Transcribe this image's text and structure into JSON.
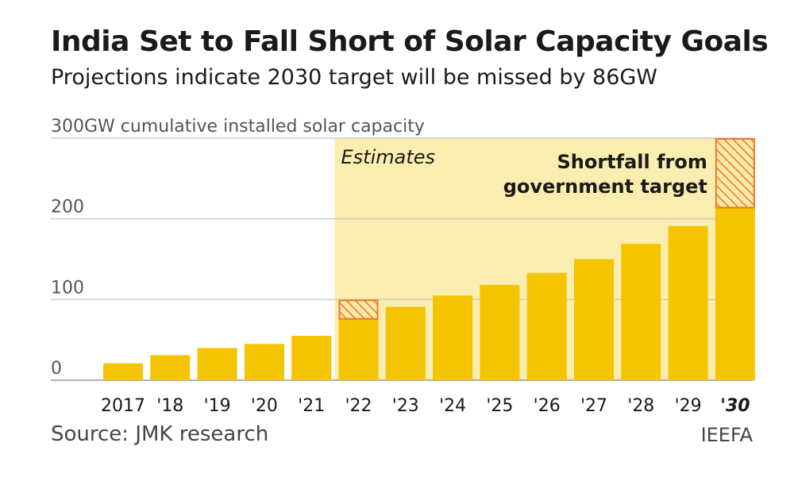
{
  "header": {
    "title": "India Set to Fall Short of Solar Capacity Goals",
    "subtitle": "Projections indicate 2030 target will be missed by 86GW"
  },
  "footer": {
    "source": "Source: JMK research",
    "credit": "IEEFA"
  },
  "colors": {
    "bar": "#f5c400",
    "estimate_band": "#faedb0",
    "shortfall_fill": "#fbe9a6",
    "shortfall_hatch": "#e87a2a",
    "grid": "#cccccc"
  },
  "chart_data": {
    "type": "bar",
    "ylabel": "cumulative installed solar capacity",
    "y_ticks": [
      "0",
      "100",
      "200",
      "300GW"
    ],
    "ylim": [
      0,
      300
    ],
    "categories": [
      "2017",
      "'18",
      "'19",
      "'20",
      "'21",
      "'22",
      "'23",
      "'24",
      "'25",
      "'26",
      "'27",
      "'28",
      "'29",
      "'30"
    ],
    "series": [
      {
        "values": [
          21,
          31,
          40,
          45,
          55,
          76,
          91,
          105,
          118,
          133,
          150,
          169,
          191,
          214
        ]
      }
    ],
    "shortfall_to_target": [
      {
        "category": "'22",
        "from": 76,
        "to": 100
      },
      {
        "category": "'30",
        "from": 214,
        "to": 300
      }
    ],
    "estimate_region_start": "'22",
    "annotations": {
      "estimates": "Estimates",
      "shortfall_line1": "Shortfall from",
      "shortfall_line2": "government target"
    },
    "grid": true,
    "highlight_category": "'30"
  }
}
